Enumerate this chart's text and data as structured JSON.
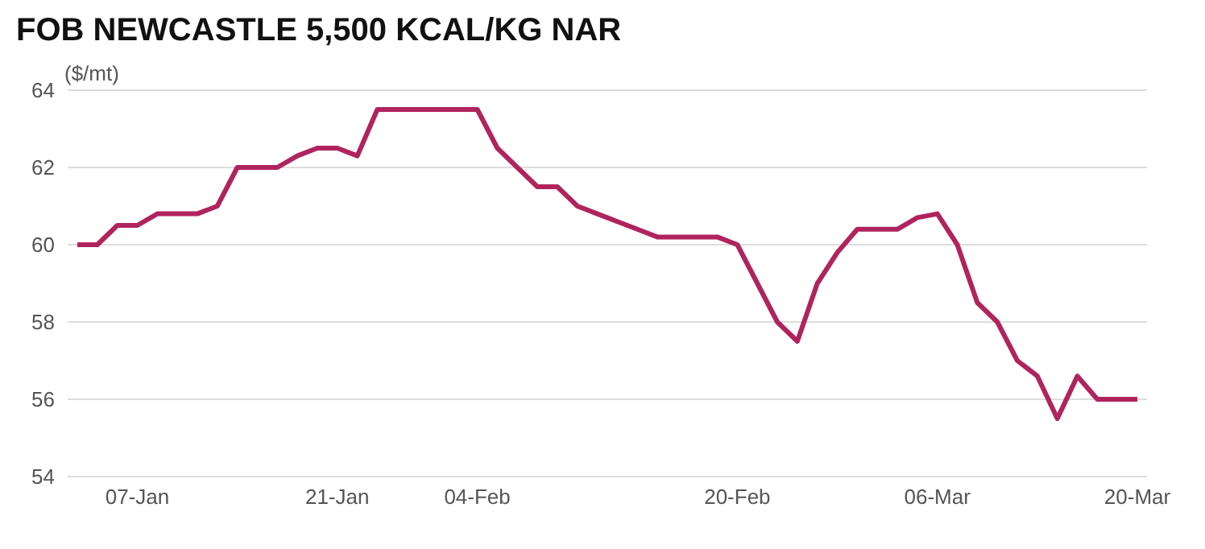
{
  "chart_data": {
    "type": "line",
    "title": "FOB NEWCASTLE 5,500 KCAL/KG NAR",
    "ylabel": "($/mt)",
    "categories": [
      null,
      null,
      null,
      "07-Jan",
      null,
      null,
      null,
      null,
      null,
      null,
      null,
      null,
      null,
      "21-Jan",
      null,
      null,
      null,
      null,
      null,
      null,
      "04-Feb",
      null,
      null,
      null,
      null,
      null,
      null,
      null,
      null,
      null,
      null,
      null,
      null,
      "20-Feb",
      null,
      null,
      null,
      null,
      null,
      null,
      null,
      null,
      null,
      "06-Mar",
      null,
      null,
      null,
      null,
      null,
      null,
      null,
      null,
      null,
      "20-Mar"
    ],
    "series": [
      {
        "color": "#b0245e",
        "values": [
          60.0,
          60.0,
          60.5,
          60.5,
          60.8,
          60.8,
          60.8,
          61.0,
          62.0,
          62.0,
          62.0,
          62.3,
          62.5,
          62.5,
          62.3,
          63.5,
          63.5,
          63.5,
          63.5,
          63.5,
          63.5,
          62.5,
          62.0,
          61.5,
          61.5,
          61.0,
          60.8,
          60.6,
          60.4,
          60.2,
          60.2,
          60.2,
          60.2,
          60.0,
          59.0,
          58.0,
          57.5,
          59.0,
          59.8,
          60.4,
          60.4,
          60.4,
          60.7,
          60.8,
          60.0,
          58.5,
          58.0,
          57.0,
          56.6,
          55.5,
          56.6,
          56.0,
          56.0,
          56.0
        ]
      }
    ],
    "ylim": [
      54,
      64
    ],
    "yticks": [
      54,
      56,
      58,
      60,
      62,
      64
    ],
    "grid": "y",
    "legend": false,
    "marker": "none",
    "line_style": "solid"
  }
}
